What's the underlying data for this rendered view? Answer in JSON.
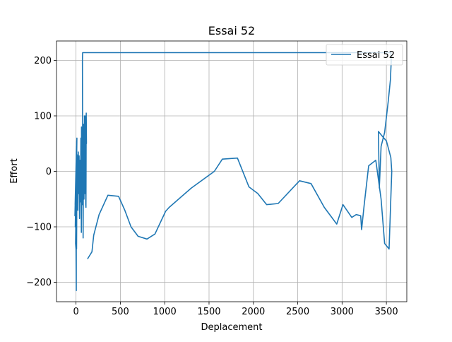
{
  "chart_data": {
    "type": "line",
    "title": "Essai 52",
    "xlabel": "Deplacement",
    "ylabel": "Effort",
    "xlim": [
      -220,
      3730
    ],
    "ylim": [
      -235,
      235
    ],
    "x_ticks": [
      0,
      500,
      1000,
      1500,
      2000,
      2500,
      3000,
      3500
    ],
    "y_ticks": [
      -200,
      -100,
      0,
      100,
      200
    ],
    "x_tick_labels": [
      "0",
      "500",
      "1000",
      "1500",
      "2000",
      "2500",
      "3000",
      "3500"
    ],
    "y_tick_labels": [
      "−200",
      "−100",
      "0",
      "100",
      "200"
    ],
    "grid": true,
    "legend": "top-right",
    "color": "#1f77b4",
    "series": [
      {
        "name": "Essai 52",
        "points": [
          [
            -5,
            -35
          ],
          [
            2,
            20
          ],
          [
            -10,
            -60
          ],
          [
            5,
            45
          ],
          [
            -8,
            -100
          ],
          [
            8,
            55
          ],
          [
            -12,
            -80
          ],
          [
            10,
            60
          ],
          [
            -5,
            -130
          ],
          [
            0,
            -140
          ],
          [
            3,
            -215
          ],
          [
            3,
            -30
          ],
          [
            6,
            -140
          ],
          [
            12,
            30
          ],
          [
            20,
            -70
          ],
          [
            25,
            35
          ],
          [
            30,
            -40
          ],
          [
            35,
            28
          ],
          [
            40,
            -85
          ],
          [
            45,
            20
          ],
          [
            50,
            -55
          ],
          [
            55,
            60
          ],
          [
            60,
            -110
          ],
          [
            62,
            80
          ],
          [
            70,
            -60
          ],
          [
            75,
            70
          ],
          [
            80,
            -120
          ],
          [
            85,
            85
          ],
          [
            90,
            -50
          ],
          [
            95,
            100
          ],
          [
            100,
            -40
          ],
          [
            105,
            100
          ],
          [
            110,
            -60
          ],
          [
            112,
            -65
          ],
          [
            115,
            105
          ],
          [
            118,
            50
          ],
          [
            75,
            60
          ],
          [
            72,
            200
          ],
          [
            75,
            214
          ],
          [
            78,
            214
          ],
          [
            2000,
            214
          ],
          [
            3550,
            214
          ],
          [
            3555,
            200
          ],
          [
            3545,
            165
          ],
          [
            3520,
            125
          ],
          [
            3480,
            70
          ],
          [
            3440,
            45
          ],
          [
            3420,
            -30
          ],
          [
            3410,
            72
          ],
          [
            3460,
            62
          ],
          [
            3500,
            55
          ],
          [
            3550,
            25
          ],
          [
            3560,
            0
          ],
          [
            3545,
            -70
          ],
          [
            3530,
            -140
          ],
          [
            3490,
            -132
          ],
          [
            3480,
            -130
          ],
          [
            3440,
            -50
          ],
          [
            3380,
            20
          ],
          [
            3300,
            10
          ],
          [
            3250,
            -60
          ],
          [
            3220,
            -105
          ],
          [
            3210,
            -80
          ],
          [
            3160,
            -78
          ],
          [
            3110,
            -83
          ],
          [
            3010,
            -60
          ],
          [
            2940,
            -95
          ],
          [
            2800,
            -65
          ],
          [
            2650,
            -22
          ],
          [
            2520,
            -17
          ],
          [
            2280,
            -58
          ],
          [
            2150,
            -60
          ],
          [
            2050,
            -40
          ],
          [
            1950,
            -28
          ],
          [
            1820,
            24
          ],
          [
            1650,
            22
          ],
          [
            1560,
            0
          ],
          [
            1300,
            -30
          ],
          [
            1050,
            -65
          ],
          [
            1010,
            -72
          ],
          [
            890,
            -113
          ],
          [
            800,
            -122
          ],
          [
            700,
            -117
          ],
          [
            620,
            -100
          ],
          [
            550,
            -70
          ],
          [
            480,
            -45
          ],
          [
            360,
            -43
          ],
          [
            260,
            -78
          ],
          [
            200,
            -115
          ],
          [
            180,
            -145
          ],
          [
            130,
            -158
          ]
        ]
      }
    ]
  }
}
